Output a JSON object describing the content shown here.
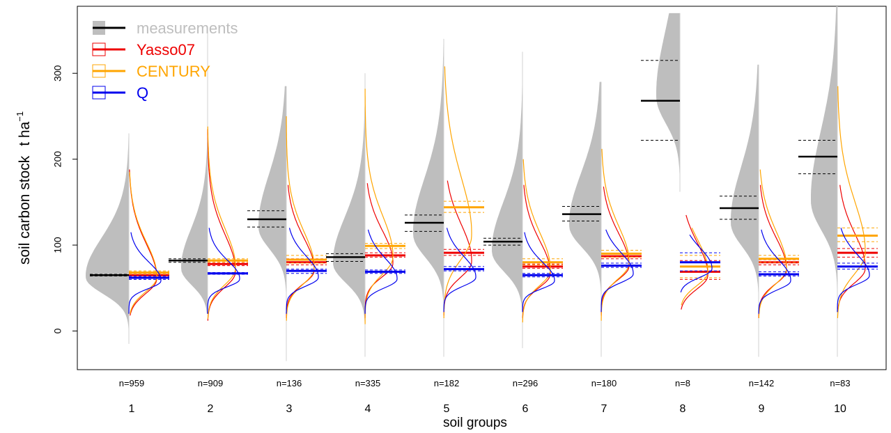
{
  "chart_data": {
    "type": "violin",
    "xlabel": "soil groups",
    "ylabel_main": "soil carbon stock",
    "ylabel_unit": "t ha",
    "ylabel_exp": "−1",
    "ylim": [
      -45,
      378
    ],
    "yticks": [
      0,
      100,
      200,
      300
    ],
    "legend_position": "top-left",
    "colors": {
      "measurements_fill": "#bebebe",
      "measurements_line": "#000000",
      "Yasso07": "#ee0000",
      "CENTURY": "#ffa500",
      "Q": "#0000ee"
    },
    "legend": [
      {
        "name": "measurements",
        "key": "measurements"
      },
      {
        "name": "Yasso07",
        "key": "Yasso07"
      },
      {
        "name": "CENTURY",
        "key": "CENTURY"
      },
      {
        "name": "Q",
        "key": "Q"
      }
    ],
    "groups": [
      {
        "label": "1",
        "n": "n=959",
        "meas": {
          "mean": 65,
          "ci": [
            64,
            66
          ],
          "mode": 62,
          "spread": 34,
          "min": -15,
          "max": 230,
          "width": 62
        },
        "models": {
          "Yasso07": {
            "mean": 65,
            "ci": [
              63,
              67
            ],
            "mode": 60,
            "sd": 30,
            "min": 18,
            "max": 188
          },
          "CENTURY": {
            "mean": 68,
            "ci": [
              66,
              70
            ],
            "mode": 62,
            "sd": 30,
            "min": 20,
            "max": 185
          },
          "Q": {
            "mean": 62,
            "ci": [
              60,
              64
            ],
            "mode": 58,
            "sd": 16,
            "min": 20,
            "max": 115
          }
        }
      },
      {
        "label": "2",
        "n": "n=909",
        "meas": {
          "mean": 82,
          "ci": [
            80,
            84
          ],
          "mode": 72,
          "spread": 34,
          "min": 20,
          "max": 350,
          "width": 38
        },
        "models": {
          "Yasso07": {
            "mean": 78,
            "ci": [
              76,
              80
            ],
            "mode": 68,
            "sd": 32,
            "min": 12,
            "max": 235
          },
          "CENTURY": {
            "mean": 82,
            "ci": [
              80,
              84
            ],
            "mode": 72,
            "sd": 34,
            "min": 14,
            "max": 238
          },
          "Q": {
            "mean": 67,
            "ci": [
              66,
              68
            ],
            "mode": 60,
            "sd": 16,
            "min": 20,
            "max": 120
          }
        }
      },
      {
        "label": "3",
        "n": "n=136",
        "meas": {
          "mean": 130,
          "ci": [
            121,
            140
          ],
          "mode": 120,
          "spread": 45,
          "min": -35,
          "max": 285,
          "width": 40
        },
        "models": {
          "Yasso07": {
            "mean": 80,
            "ci": [
              77,
              84
            ],
            "mode": 70,
            "sd": 28,
            "min": 15,
            "max": 170
          },
          "CENTURY": {
            "mean": 83,
            "ci": [
              79,
              88
            ],
            "mode": 72,
            "sd": 32,
            "min": 12,
            "max": 250
          },
          "Q": {
            "mean": 70,
            "ci": [
              67,
              72
            ],
            "mode": 62,
            "sd": 18,
            "min": 20,
            "max": 120
          }
        }
      },
      {
        "label": "4",
        "n": "n=335",
        "meas": {
          "mean": 86,
          "ci": [
            81,
            90
          ],
          "mode": 78,
          "spread": 40,
          "min": -30,
          "max": 300,
          "width": 46
        },
        "models": {
          "Yasso07": {
            "mean": 88,
            "ci": [
              86,
              91
            ],
            "mode": 78,
            "sd": 28,
            "min": 15,
            "max": 172
          },
          "CENTURY": {
            "mean": 99,
            "ci": [
              96,
              102
            ],
            "mode": 85,
            "sd": 36,
            "min": 8,
            "max": 282
          },
          "Q": {
            "mean": 69,
            "ci": [
              67,
              71
            ],
            "mode": 60,
            "sd": 18,
            "min": 20,
            "max": 118
          }
        }
      },
      {
        "label": "5",
        "n": "n=182",
        "meas": {
          "mean": 126,
          "ci": [
            116,
            135
          ],
          "mode": 112,
          "spread": 48,
          "min": -30,
          "max": 340,
          "width": 44
        },
        "models": {
          "Yasso07": {
            "mean": 91,
            "ci": [
              88,
              95
            ],
            "mode": 80,
            "sd": 32,
            "min": 18,
            "max": 175
          },
          "CENTURY": {
            "mean": 144,
            "ci": [
              138,
              151
            ],
            "mode": 110,
            "sd": 50,
            "min": 15,
            "max": 308
          },
          "Q": {
            "mean": 72,
            "ci": [
              70,
              75
            ],
            "mode": 62,
            "sd": 18,
            "min": 22,
            "max": 120
          }
        }
      },
      {
        "label": "6",
        "n": "n=296",
        "meas": {
          "mean": 104,
          "ci": [
            100,
            108
          ],
          "mode": 92,
          "spread": 42,
          "min": -20,
          "max": 325,
          "width": 44
        },
        "models": {
          "Yasso07": {
            "mean": 75,
            "ci": [
              73,
              78
            ],
            "mode": 66,
            "sd": 28,
            "min": 15,
            "max": 170
          },
          "CENTURY": {
            "mean": 80,
            "ci": [
              77,
              84
            ],
            "mode": 70,
            "sd": 32,
            "min": 10,
            "max": 200
          },
          "Q": {
            "mean": 65,
            "ci": [
              63,
              67
            ],
            "mode": 58,
            "sd": 16,
            "min": 22,
            "max": 115
          }
        }
      },
      {
        "label": "7",
        "n": "n=180",
        "meas": {
          "mean": 136,
          "ci": [
            128,
            145
          ],
          "mode": 122,
          "spread": 45,
          "min": -30,
          "max": 290,
          "width": 46
        },
        "models": {
          "Yasso07": {
            "mean": 87,
            "ci": [
              84,
              90
            ],
            "mode": 75,
            "sd": 28,
            "min": 18,
            "max": 168
          },
          "CENTURY": {
            "mean": 90,
            "ci": [
              86,
              94
            ],
            "mode": 78,
            "sd": 32,
            "min": 12,
            "max": 212
          },
          "Q": {
            "mean": 76,
            "ci": [
              74,
              79
            ],
            "mode": 66,
            "sd": 18,
            "min": 22,
            "max": 118
          }
        }
      },
      {
        "label": "8",
        "n": "n=8",
        "meas": {
          "mean": 268,
          "ci": [
            222,
            315
          ],
          "mode": 272,
          "spread": 55,
          "min": 162,
          "max": 370,
          "width": 34
        },
        "models": {
          "Yasso07": {
            "mean": 69,
            "ci": [
              60,
              82
            ],
            "mode": 64,
            "sd": 28,
            "min": 25,
            "max": 135
          },
          "CENTURY": {
            "mean": 75,
            "ci": [
              62,
              88
            ],
            "mode": 68,
            "sd": 28,
            "min": 30,
            "max": 120
          },
          "Q": {
            "mean": 80,
            "ci": [
              70,
              91
            ],
            "mode": 72,
            "sd": 18,
            "min": 45,
            "max": 112
          }
        }
      },
      {
        "label": "9",
        "n": "n=142",
        "meas": {
          "mean": 143,
          "ci": [
            130,
            157
          ],
          "mode": 125,
          "spread": 48,
          "min": -30,
          "max": 310,
          "width": 40
        },
        "models": {
          "Yasso07": {
            "mean": 80,
            "ci": [
              77,
              83
            ],
            "mode": 70,
            "sd": 28,
            "min": 15,
            "max": 170
          },
          "CENTURY": {
            "mean": 84,
            "ci": [
              80,
              88
            ],
            "mode": 72,
            "sd": 32,
            "min": 15,
            "max": 188
          },
          "Q": {
            "mean": 66,
            "ci": [
              64,
              69
            ],
            "mode": 58,
            "sd": 18,
            "min": 20,
            "max": 118
          }
        }
      },
      {
        "label": "10",
        "n": "n=83",
        "meas": {
          "mean": 203,
          "ci": [
            183,
            222
          ],
          "mode": 150,
          "spread": 60,
          "min": -30,
          "max": 378,
          "width": 38
        },
        "models": {
          "Yasso07": {
            "mean": 91,
            "ci": [
              86,
              96
            ],
            "mode": 72,
            "sd": 30,
            "min": 25,
            "max": 170
          },
          "CENTURY": {
            "mean": 111,
            "ci": [
              104,
              120
            ],
            "mode": 90,
            "sd": 44,
            "min": 15,
            "max": 285
          },
          "Q": {
            "mean": 75,
            "ci": [
              72,
              79
            ],
            "mode": 64,
            "sd": 18,
            "min": 22,
            "max": 120
          }
        }
      }
    ]
  }
}
